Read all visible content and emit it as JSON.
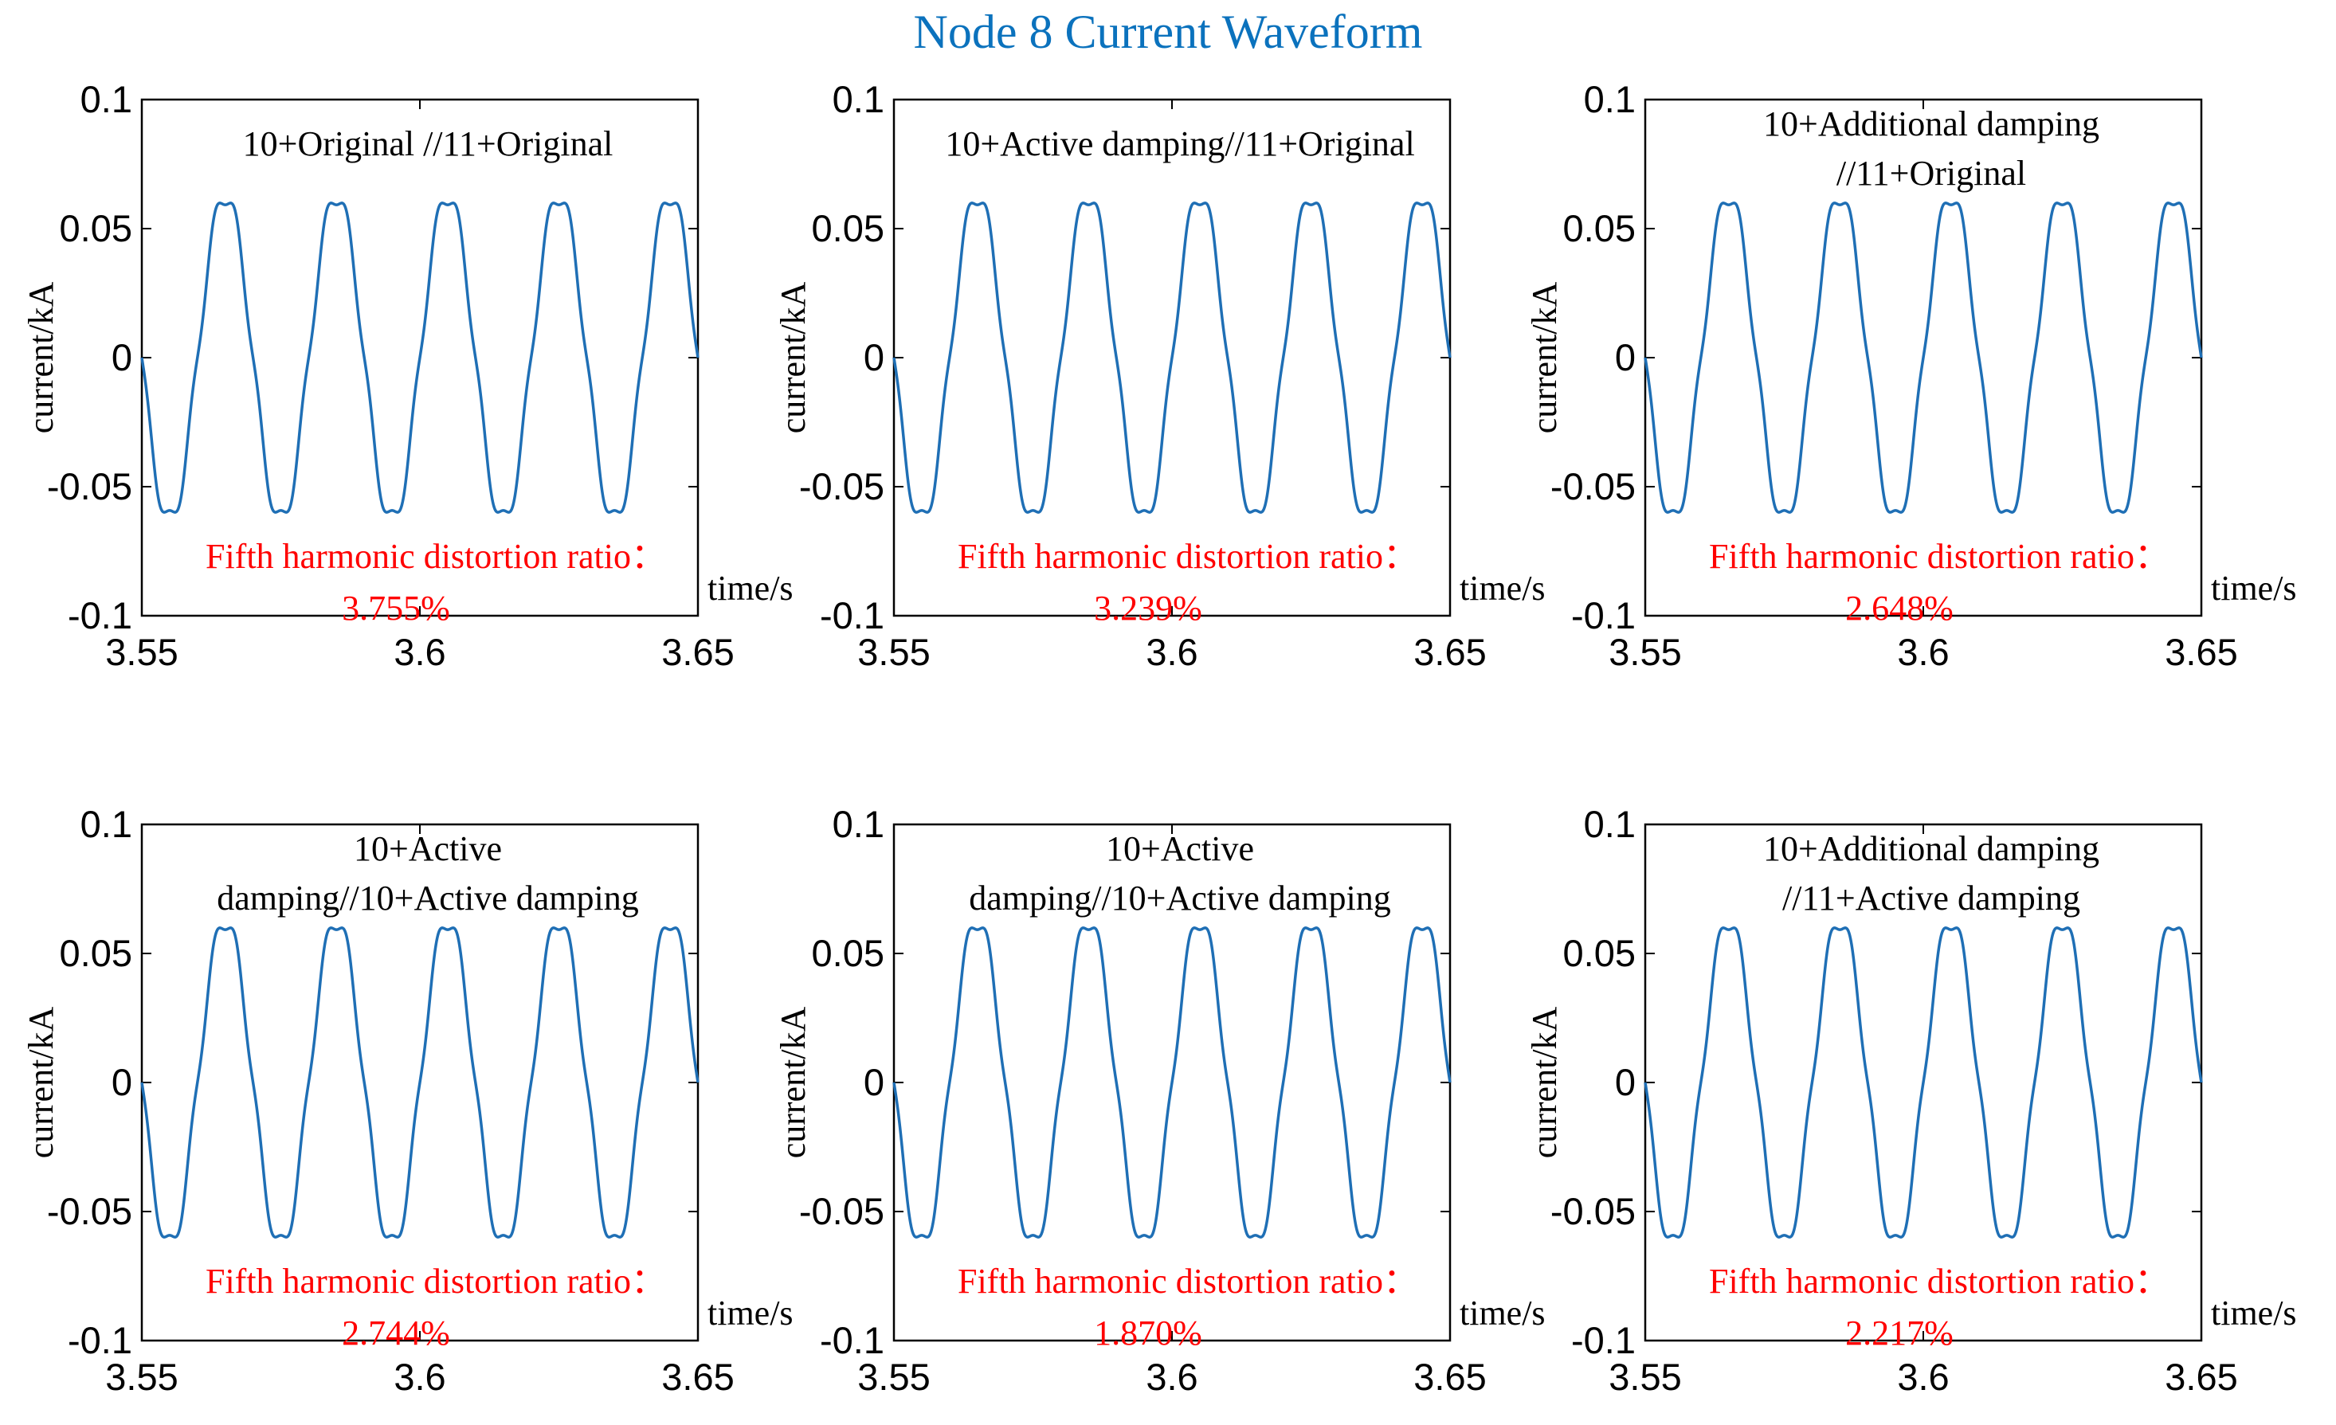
{
  "figure": {
    "title": "Node 8 Current Waveform",
    "title_color": "#0b72bd",
    "line_color": "#1f6fb5",
    "annotation_color": "#ff0000"
  },
  "chart_data": [
    {
      "type": "line",
      "panel_title_lines": [
        "10+Original //11+Original"
      ],
      "ylabel": "current/kA",
      "xlabel": "time/s",
      "xlim": [
        3.55,
        3.65
      ],
      "ylim": [
        -0.1,
        0.1
      ],
      "xticks": [
        "3.55",
        "3.6",
        "3.65"
      ],
      "yticks": [
        "-0.1",
        "-0.05",
        "0",
        "0.05",
        "0.1"
      ],
      "series": [
        {
          "name": "current",
          "frequency_hz": 50,
          "amplitude_kA": 0.063,
          "fifth_harmonic_ratio_percent": 3.755
        }
      ],
      "annotation_label": "Fifth harmonic distortion ratio：",
      "annotation_value": "3.755%"
    },
    {
      "type": "line",
      "panel_title_lines": [
        "10+Active damping//11+Original"
      ],
      "ylabel": "current/kA",
      "xlabel": "time/s",
      "xlim": [
        3.55,
        3.65
      ],
      "ylim": [
        -0.1,
        0.1
      ],
      "xticks": [
        "3.55",
        "3.6",
        "3.65"
      ],
      "yticks": [
        "-0.1",
        "-0.05",
        "0",
        "0.05",
        "0.1"
      ],
      "series": [
        {
          "name": "current",
          "frequency_hz": 50,
          "amplitude_kA": 0.063,
          "fifth_harmonic_ratio_percent": 3.239
        }
      ],
      "annotation_label": "Fifth harmonic distortion ratio：",
      "annotation_value": "3.239%"
    },
    {
      "type": "line",
      "panel_title_lines": [
        "10+Additional damping",
        "//11+Original"
      ],
      "ylabel": "current/kA",
      "xlabel": "time/s",
      "xlim": [
        3.55,
        3.65
      ],
      "ylim": [
        -0.1,
        0.1
      ],
      "xticks": [
        "3.55",
        "3.6",
        "3.65"
      ],
      "yticks": [
        "-0.1",
        "-0.05",
        "0",
        "0.05",
        "0.1"
      ],
      "series": [
        {
          "name": "current",
          "frequency_hz": 50,
          "amplitude_kA": 0.063,
          "fifth_harmonic_ratio_percent": 2.648
        }
      ],
      "annotation_label": "Fifth harmonic distortion ratio：",
      "annotation_value": "2.648%"
    },
    {
      "type": "line",
      "panel_title_lines": [
        "10+Active",
        "damping//10+Active damping"
      ],
      "ylabel": "current/kA",
      "xlabel": "time/s",
      "xlim": [
        3.55,
        3.65
      ],
      "ylim": [
        -0.1,
        0.1
      ],
      "xticks": [
        "3.55",
        "3.6",
        "3.65"
      ],
      "yticks": [
        "-0.1",
        "-0.05",
        "0",
        "0.05",
        "0.1"
      ],
      "series": [
        {
          "name": "current",
          "frequency_hz": 50,
          "amplitude_kA": 0.063,
          "fifth_harmonic_ratio_percent": 2.744
        }
      ],
      "annotation_label": "Fifth harmonic distortion ratio：",
      "annotation_value": "2.744%"
    },
    {
      "type": "line",
      "panel_title_lines": [
        "10+Active",
        "damping//10+Active damping"
      ],
      "ylabel": "current/kA",
      "xlabel": "time/s",
      "xlim": [
        3.55,
        3.65
      ],
      "ylim": [
        -0.1,
        0.1
      ],
      "xticks": [
        "3.55",
        "3.6",
        "3.65"
      ],
      "yticks": [
        "-0.1",
        "-0.05",
        "0",
        "0.05",
        "0.1"
      ],
      "series": [
        {
          "name": "current",
          "frequency_hz": 50,
          "amplitude_kA": 0.063,
          "fifth_harmonic_ratio_percent": 1.87
        }
      ],
      "annotation_label": "Fifth harmonic distortion ratio：",
      "annotation_value": "1.870%"
    },
    {
      "type": "line",
      "panel_title_lines": [
        "10+Additional damping",
        "//11+Active damping"
      ],
      "ylabel": "current/kA",
      "xlabel": "time/s",
      "xlim": [
        3.55,
        3.65
      ],
      "ylim": [
        -0.1,
        0.1
      ],
      "xticks": [
        "3.55",
        "3.6",
        "3.65"
      ],
      "yticks": [
        "-0.1",
        "-0.05",
        "0",
        "0.05",
        "0.1"
      ],
      "series": [
        {
          "name": "current",
          "frequency_hz": 50,
          "amplitude_kA": 0.063,
          "fifth_harmonic_ratio_percent": 2.217
        }
      ],
      "annotation_label": "Fifth harmonic distortion ratio：",
      "annotation_value": "2.217%"
    }
  ]
}
